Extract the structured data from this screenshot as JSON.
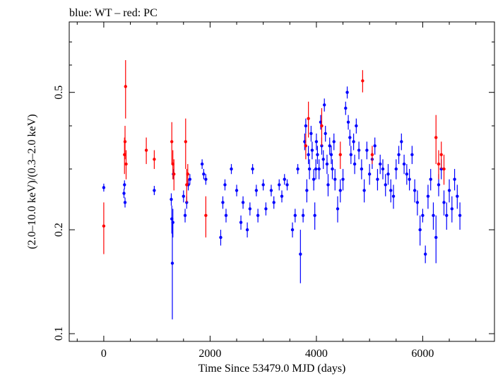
{
  "chart_data": {
    "type": "scatter",
    "title": "blue: WT – red: PC",
    "xlabel": "Time Since 53479.0 MJD (days)",
    "ylabel": "(2.0–10.0 keV)/(0.3–2.0 keV)",
    "xlim": [
      -650,
      7350
    ],
    "ylim": [
      0.095,
      0.8
    ],
    "yscale": "log",
    "x_ticks": [
      0,
      2000,
      4000,
      6000
    ],
    "x_tick_labels": [
      "0",
      "2000",
      "4000",
      "6000"
    ],
    "y_ticks": [
      0.1,
      0.2,
      0.5
    ],
    "y_tick_labels": [
      "0.1",
      "0.2",
      "0.5"
    ],
    "grid": false,
    "series": [
      {
        "name": "WT",
        "color": "#0000ff",
        "points": [
          [
            0,
            0.265,
            0.007
          ],
          [
            380,
            0.255,
            0.008
          ],
          [
            390,
            0.27,
            0.008
          ],
          [
            400,
            0.24,
            0.008
          ],
          [
            950,
            0.26,
            0.008
          ],
          [
            1270,
            0.245,
            0.01
          ],
          [
            1280,
            0.215,
            0.02
          ],
          [
            1290,
            0.16,
            0.05
          ],
          [
            1300,
            0.21,
            0.02
          ],
          [
            1310,
            0.29,
            0.01
          ],
          [
            1500,
            0.25,
            0.01
          ],
          [
            1530,
            0.22,
            0.01
          ],
          [
            1560,
            0.24,
            0.01
          ],
          [
            1590,
            0.27,
            0.01
          ],
          [
            1620,
            0.28,
            0.01
          ],
          [
            1850,
            0.31,
            0.01
          ],
          [
            1880,
            0.29,
            0.01
          ],
          [
            1920,
            0.28,
            0.01
          ],
          [
            2200,
            0.19,
            0.01
          ],
          [
            2240,
            0.24,
            0.01
          ],
          [
            2280,
            0.27,
            0.01
          ],
          [
            2300,
            0.22,
            0.01
          ],
          [
            2400,
            0.3,
            0.01
          ],
          [
            2500,
            0.26,
            0.01
          ],
          [
            2580,
            0.21,
            0.01
          ],
          [
            2620,
            0.24,
            0.01
          ],
          [
            2700,
            0.2,
            0.01
          ],
          [
            2750,
            0.23,
            0.01
          ],
          [
            2800,
            0.3,
            0.01
          ],
          [
            2870,
            0.26,
            0.01
          ],
          [
            2900,
            0.22,
            0.01
          ],
          [
            3000,
            0.27,
            0.01
          ],
          [
            3050,
            0.23,
            0.01
          ],
          [
            3150,
            0.26,
            0.01
          ],
          [
            3200,
            0.24,
            0.01
          ],
          [
            3300,
            0.27,
            0.01
          ],
          [
            3350,
            0.25,
            0.01
          ],
          [
            3400,
            0.28,
            0.01
          ],
          [
            3450,
            0.27,
            0.01
          ],
          [
            3550,
            0.2,
            0.01
          ],
          [
            3600,
            0.22,
            0.01
          ],
          [
            3650,
            0.3,
            0.01
          ],
          [
            3700,
            0.17,
            0.03
          ],
          [
            3750,
            0.22,
            0.01
          ],
          [
            3780,
            0.36,
            0.02
          ],
          [
            3800,
            0.4,
            0.02
          ],
          [
            3820,
            0.26,
            0.02
          ],
          [
            3850,
            0.33,
            0.02
          ],
          [
            3870,
            0.3,
            0.02
          ],
          [
            3900,
            0.38,
            0.02
          ],
          [
            3920,
            0.34,
            0.02
          ],
          [
            3950,
            0.28,
            0.02
          ],
          [
            3970,
            0.22,
            0.02
          ],
          [
            3990,
            0.3,
            0.02
          ],
          [
            4000,
            0.36,
            0.02
          ],
          [
            4020,
            0.33,
            0.02
          ],
          [
            4050,
            0.3,
            0.02
          ],
          [
            4080,
            0.41,
            0.02
          ],
          [
            4100,
            0.35,
            0.02
          ],
          [
            4130,
            0.32,
            0.02
          ],
          [
            4150,
            0.46,
            0.02
          ],
          [
            4170,
            0.38,
            0.02
          ],
          [
            4200,
            0.31,
            0.02
          ],
          [
            4220,
            0.27,
            0.02
          ],
          [
            4250,
            0.35,
            0.02
          ],
          [
            4280,
            0.33,
            0.02
          ],
          [
            4300,
            0.3,
            0.02
          ],
          [
            4330,
            0.36,
            0.02
          ],
          [
            4350,
            0.28,
            0.02
          ],
          [
            4400,
            0.23,
            0.02
          ],
          [
            4450,
            0.26,
            0.02
          ],
          [
            4500,
            0.28,
            0.02
          ],
          [
            4550,
            0.45,
            0.02
          ],
          [
            4580,
            0.5,
            0.02
          ],
          [
            4600,
            0.41,
            0.02
          ],
          [
            4630,
            0.37,
            0.02
          ],
          [
            4650,
            0.33,
            0.02
          ],
          [
            4700,
            0.36,
            0.02
          ],
          [
            4720,
            0.31,
            0.02
          ],
          [
            4750,
            0.4,
            0.02
          ],
          [
            4800,
            0.34,
            0.02
          ],
          [
            4850,
            0.3,
            0.02
          ],
          [
            4900,
            0.26,
            0.02
          ],
          [
            4950,
            0.34,
            0.02
          ],
          [
            5000,
            0.29,
            0.02
          ],
          [
            5050,
            0.32,
            0.02
          ],
          [
            5100,
            0.35,
            0.02
          ],
          [
            5150,
            0.28,
            0.02
          ],
          [
            5200,
            0.31,
            0.02
          ],
          [
            5250,
            0.3,
            0.02
          ],
          [
            5300,
            0.27,
            0.02
          ],
          [
            5350,
            0.29,
            0.02
          ],
          [
            5400,
            0.26,
            0.02
          ],
          [
            5450,
            0.25,
            0.02
          ],
          [
            5500,
            0.3,
            0.02
          ],
          [
            5550,
            0.33,
            0.02
          ],
          [
            5600,
            0.36,
            0.02
          ],
          [
            5650,
            0.31,
            0.02
          ],
          [
            5700,
            0.29,
            0.02
          ],
          [
            5750,
            0.28,
            0.02
          ],
          [
            5800,
            0.33,
            0.02
          ],
          [
            5850,
            0.26,
            0.02
          ],
          [
            5900,
            0.24,
            0.02
          ],
          [
            5950,
            0.2,
            0.02
          ],
          [
            6000,
            0.22,
            0.01
          ],
          [
            6050,
            0.17,
            0.01
          ],
          [
            6100,
            0.25,
            0.02
          ],
          [
            6150,
            0.28,
            0.02
          ],
          [
            6200,
            0.22,
            0.02
          ],
          [
            6250,
            0.19,
            0.03
          ],
          [
            6300,
            0.27,
            0.02
          ],
          [
            6350,
            0.3,
            0.02
          ],
          [
            6400,
            0.24,
            0.02
          ],
          [
            6450,
            0.22,
            0.02
          ],
          [
            6500,
            0.26,
            0.02
          ],
          [
            6550,
            0.23,
            0.02
          ],
          [
            6600,
            0.28,
            0.02
          ],
          [
            6650,
            0.25,
            0.02
          ],
          [
            6700,
            0.22,
            0.02
          ]
        ]
      },
      {
        "name": "PC",
        "color": "#ff0000",
        "points": [
          [
            0,
            0.205,
            0.035
          ],
          [
            390,
            0.33,
            0.04
          ],
          [
            400,
            0.36,
            0.04
          ],
          [
            410,
            0.52,
            0.1
          ],
          [
            420,
            0.31,
            0.03
          ],
          [
            800,
            0.34,
            0.03
          ],
          [
            950,
            0.32,
            0.02
          ],
          [
            1280,
            0.36,
            0.05
          ],
          [
            1300,
            0.31,
            0.03
          ],
          [
            1320,
            0.29,
            0.03
          ],
          [
            1540,
            0.36,
            0.06
          ],
          [
            1560,
            0.27,
            0.03
          ],
          [
            1580,
            0.29,
            0.02
          ],
          [
            1920,
            0.22,
            0.03
          ],
          [
            3800,
            0.35,
            0.03
          ],
          [
            3850,
            0.42,
            0.05
          ],
          [
            4100,
            0.4,
            0.05
          ],
          [
            4450,
            0.33,
            0.03
          ],
          [
            4870,
            0.54,
            0.04
          ],
          [
            5050,
            0.33,
            0.02
          ],
          [
            6250,
            0.37,
            0.06
          ],
          [
            6300,
            0.31,
            0.03
          ],
          [
            6350,
            0.33,
            0.03
          ],
          [
            6400,
            0.3,
            0.03
          ]
        ]
      }
    ]
  }
}
